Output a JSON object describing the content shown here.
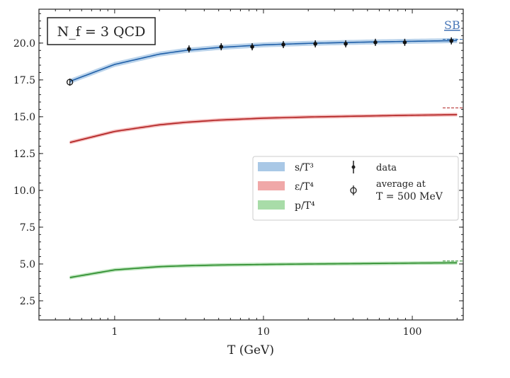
{
  "chart_data": {
    "type": "line",
    "title": "",
    "annotation": "N_f = 3 QCD",
    "sb_label": "SB",
    "xlabel": "T (GeV)",
    "ylabel": "",
    "xscale": "log",
    "xlim": [
      0.31,
      220
    ],
    "ylim": [
      1.2,
      22.3
    ],
    "x_ticks": [
      {
        "value": 1,
        "label": "1"
      },
      {
        "value": 10,
        "label": "10"
      },
      {
        "value": 100,
        "label": "100"
      }
    ],
    "y_ticks": [
      {
        "value": 2.5,
        "label": "2.5"
      },
      {
        "value": 5.0,
        "label": "5.0"
      },
      {
        "value": 7.5,
        "label": "7.5"
      },
      {
        "value": 10.0,
        "label": "10.0"
      },
      {
        "value": 12.5,
        "label": "12.5"
      },
      {
        "value": 15.0,
        "label": "15.0"
      },
      {
        "value": 17.5,
        "label": "17.5"
      },
      {
        "value": 20.0,
        "label": "20.0"
      }
    ],
    "grid": false,
    "legend_position": "center-right",
    "series": [
      {
        "name": "s/T³",
        "color": "#1f5fa8",
        "band_color": "#a9c8e6",
        "x": [
          0.5,
          1,
          2,
          3,
          5,
          10,
          20,
          50,
          100,
          200
        ],
        "y": [
          17.4,
          18.55,
          19.25,
          19.5,
          19.7,
          19.88,
          19.98,
          20.07,
          20.12,
          20.17
        ],
        "sb_limit": 20.25
      },
      {
        "name": "ε/T⁴",
        "color": "#b02020",
        "band_color": "#f0a8a8",
        "x": [
          0.5,
          1,
          2,
          3,
          5,
          10,
          20,
          50,
          100,
          200
        ],
        "y": [
          13.25,
          14.0,
          14.45,
          14.62,
          14.77,
          14.9,
          14.98,
          15.05,
          15.1,
          15.14
        ],
        "sb_limit": 15.6
      },
      {
        "name": "p/T⁴",
        "color": "#2a8a2a",
        "band_color": "#a8dca8",
        "x": [
          0.5,
          1,
          2,
          3,
          5,
          10,
          20,
          50,
          100,
          200
        ],
        "y": [
          4.08,
          4.6,
          4.82,
          4.88,
          4.93,
          4.97,
          5.0,
          5.03,
          5.06,
          5.08
        ],
        "sb_limit": 5.2
      }
    ],
    "data_points": {
      "name": "data",
      "x": [
        3.16,
        5.2,
        8.4,
        13.6,
        22.3,
        35.7,
        56.5,
        89,
        183
      ],
      "y": [
        19.6,
        19.75,
        19.75,
        19.9,
        19.95,
        19.95,
        20.05,
        20.05,
        20.15
      ]
    },
    "average_point": {
      "name": "average at T = 500 MeV",
      "x": 0.5,
      "y": 17.35
    },
    "legend": {
      "data_label": "data",
      "average_label_line1": "average at",
      "average_label_line2": "T = 500 MeV"
    }
  }
}
